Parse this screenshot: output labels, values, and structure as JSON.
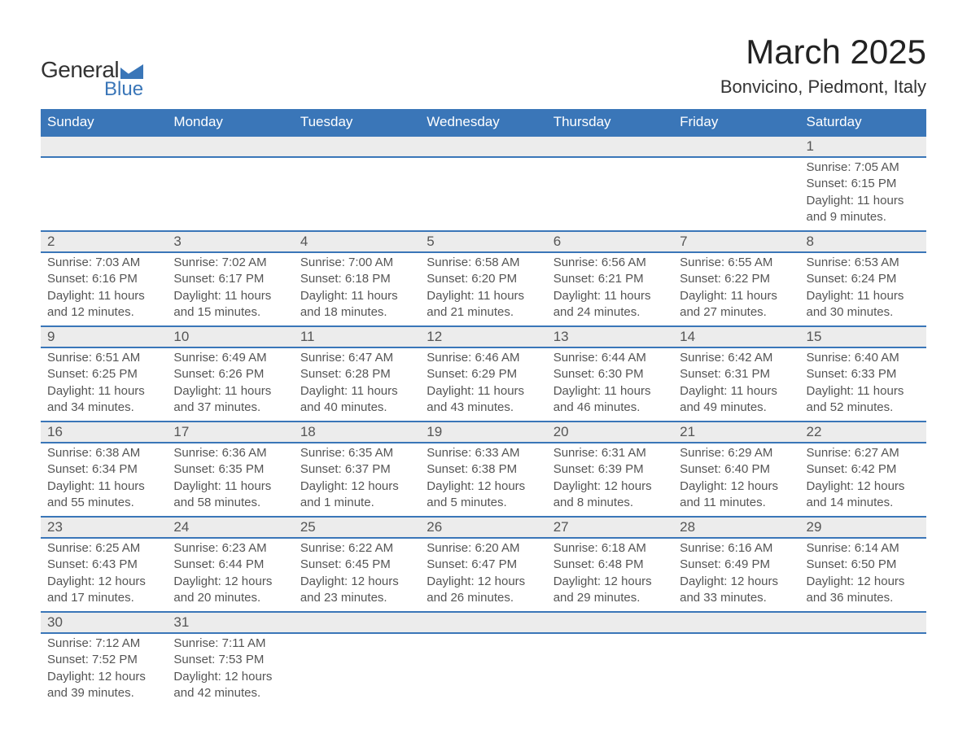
{
  "brand": {
    "name": "General",
    "sub": "Blue",
    "shape_color": "#3a76b8"
  },
  "title": "March 2025",
  "location": "Bonvicino, Piedmont, Italy",
  "weekdays": [
    "Sunday",
    "Monday",
    "Tuesday",
    "Wednesday",
    "Thursday",
    "Friday",
    "Saturday"
  ],
  "colors": {
    "header_bg": "#3a76b8",
    "header_text": "#ffffff",
    "row_divider": "#3a76b8",
    "daynum_bg": "#ececec",
    "text": "#555555",
    "page_bg": "#ffffff"
  },
  "fonts": {
    "title_size_pt": 32,
    "location_size_pt": 17,
    "weekday_size_pt": 13,
    "body_size_pt": 11
  },
  "weeks": [
    [
      null,
      null,
      null,
      null,
      null,
      null,
      {
        "n": "1",
        "sunrise": "7:05 AM",
        "sunset": "6:15 PM",
        "dl": "11 hours and 9 minutes."
      }
    ],
    [
      {
        "n": "2",
        "sunrise": "7:03 AM",
        "sunset": "6:16 PM",
        "dl": "11 hours and 12 minutes."
      },
      {
        "n": "3",
        "sunrise": "7:02 AM",
        "sunset": "6:17 PM",
        "dl": "11 hours and 15 minutes."
      },
      {
        "n": "4",
        "sunrise": "7:00 AM",
        "sunset": "6:18 PM",
        "dl": "11 hours and 18 minutes."
      },
      {
        "n": "5",
        "sunrise": "6:58 AM",
        "sunset": "6:20 PM",
        "dl": "11 hours and 21 minutes."
      },
      {
        "n": "6",
        "sunrise": "6:56 AM",
        "sunset": "6:21 PM",
        "dl": "11 hours and 24 minutes."
      },
      {
        "n": "7",
        "sunrise": "6:55 AM",
        "sunset": "6:22 PM",
        "dl": "11 hours and 27 minutes."
      },
      {
        "n": "8",
        "sunrise": "6:53 AM",
        "sunset": "6:24 PM",
        "dl": "11 hours and 30 minutes."
      }
    ],
    [
      {
        "n": "9",
        "sunrise": "6:51 AM",
        "sunset": "6:25 PM",
        "dl": "11 hours and 34 minutes."
      },
      {
        "n": "10",
        "sunrise": "6:49 AM",
        "sunset": "6:26 PM",
        "dl": "11 hours and 37 minutes."
      },
      {
        "n": "11",
        "sunrise": "6:47 AM",
        "sunset": "6:28 PM",
        "dl": "11 hours and 40 minutes."
      },
      {
        "n": "12",
        "sunrise": "6:46 AM",
        "sunset": "6:29 PM",
        "dl": "11 hours and 43 minutes."
      },
      {
        "n": "13",
        "sunrise": "6:44 AM",
        "sunset": "6:30 PM",
        "dl": "11 hours and 46 minutes."
      },
      {
        "n": "14",
        "sunrise": "6:42 AM",
        "sunset": "6:31 PM",
        "dl": "11 hours and 49 minutes."
      },
      {
        "n": "15",
        "sunrise": "6:40 AM",
        "sunset": "6:33 PM",
        "dl": "11 hours and 52 minutes."
      }
    ],
    [
      {
        "n": "16",
        "sunrise": "6:38 AM",
        "sunset": "6:34 PM",
        "dl": "11 hours and 55 minutes."
      },
      {
        "n": "17",
        "sunrise": "6:36 AM",
        "sunset": "6:35 PM",
        "dl": "11 hours and 58 minutes."
      },
      {
        "n": "18",
        "sunrise": "6:35 AM",
        "sunset": "6:37 PM",
        "dl": "12 hours and 1 minute."
      },
      {
        "n": "19",
        "sunrise": "6:33 AM",
        "sunset": "6:38 PM",
        "dl": "12 hours and 5 minutes."
      },
      {
        "n": "20",
        "sunrise": "6:31 AM",
        "sunset": "6:39 PM",
        "dl": "12 hours and 8 minutes."
      },
      {
        "n": "21",
        "sunrise": "6:29 AM",
        "sunset": "6:40 PM",
        "dl": "12 hours and 11 minutes."
      },
      {
        "n": "22",
        "sunrise": "6:27 AM",
        "sunset": "6:42 PM",
        "dl": "12 hours and 14 minutes."
      }
    ],
    [
      {
        "n": "23",
        "sunrise": "6:25 AM",
        "sunset": "6:43 PM",
        "dl": "12 hours and 17 minutes."
      },
      {
        "n": "24",
        "sunrise": "6:23 AM",
        "sunset": "6:44 PM",
        "dl": "12 hours and 20 minutes."
      },
      {
        "n": "25",
        "sunrise": "6:22 AM",
        "sunset": "6:45 PM",
        "dl": "12 hours and 23 minutes."
      },
      {
        "n": "26",
        "sunrise": "6:20 AM",
        "sunset": "6:47 PM",
        "dl": "12 hours and 26 minutes."
      },
      {
        "n": "27",
        "sunrise": "6:18 AM",
        "sunset": "6:48 PM",
        "dl": "12 hours and 29 minutes."
      },
      {
        "n": "28",
        "sunrise": "6:16 AM",
        "sunset": "6:49 PM",
        "dl": "12 hours and 33 minutes."
      },
      {
        "n": "29",
        "sunrise": "6:14 AM",
        "sunset": "6:50 PM",
        "dl": "12 hours and 36 minutes."
      }
    ],
    [
      {
        "n": "30",
        "sunrise": "7:12 AM",
        "sunset": "7:52 PM",
        "dl": "12 hours and 39 minutes."
      },
      {
        "n": "31",
        "sunrise": "7:11 AM",
        "sunset": "7:53 PM",
        "dl": "12 hours and 42 minutes."
      },
      null,
      null,
      null,
      null,
      null
    ]
  ],
  "labels": {
    "sunrise": "Sunrise: ",
    "sunset": "Sunset: ",
    "daylight": "Daylight: "
  }
}
